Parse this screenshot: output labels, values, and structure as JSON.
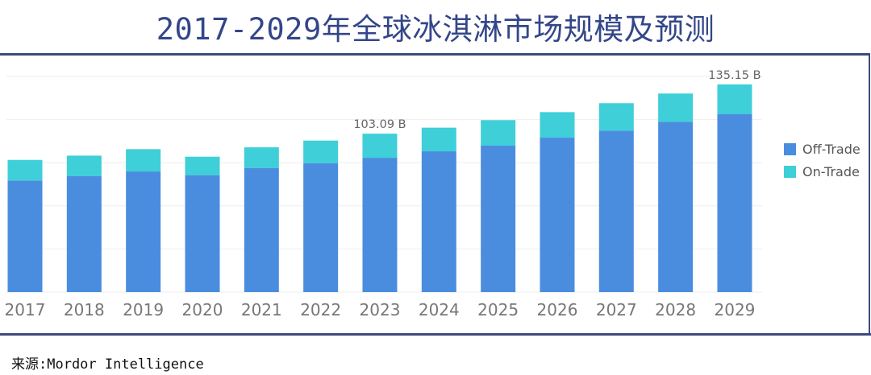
{
  "title": "2017-2029年全球冰淇淋市场规模及预测",
  "source": "来源:Mordor Intelligence",
  "chart_data": {
    "type": "bar",
    "stacked": true,
    "title": "2017-2029年全球冰淇淋市场规模及预测",
    "xlabel": "",
    "ylabel": "",
    "unit": "B",
    "ylim": [
      0,
      140
    ],
    "grid": true,
    "legend_position": "right",
    "categories": [
      "2017",
      "2018",
      "2019",
      "2020",
      "2021",
      "2022",
      "2023",
      "2024",
      "2025",
      "2026",
      "2027",
      "2028",
      "2029"
    ],
    "series": [
      {
        "name": "Off-Trade",
        "color": "#4a8ddf",
        "values": [
          72.6,
          75.4,
          78.5,
          76.1,
          80.8,
          83.9,
          87.4,
          91.6,
          95.3,
          100.5,
          105.1,
          110.8,
          115.9
        ]
      },
      {
        "name": "On-Trade",
        "color": "#3ecfd8",
        "values": [
          13.4,
          13.4,
          14.5,
          12.0,
          13.4,
          14.7,
          15.69,
          15.4,
          16.6,
          16.6,
          17.8,
          18.4,
          19.25
        ]
      }
    ],
    "annotations": [
      {
        "category": "2023",
        "text": "103.09 B"
      },
      {
        "category": "2029",
        "text": "135.15 B"
      }
    ]
  }
}
